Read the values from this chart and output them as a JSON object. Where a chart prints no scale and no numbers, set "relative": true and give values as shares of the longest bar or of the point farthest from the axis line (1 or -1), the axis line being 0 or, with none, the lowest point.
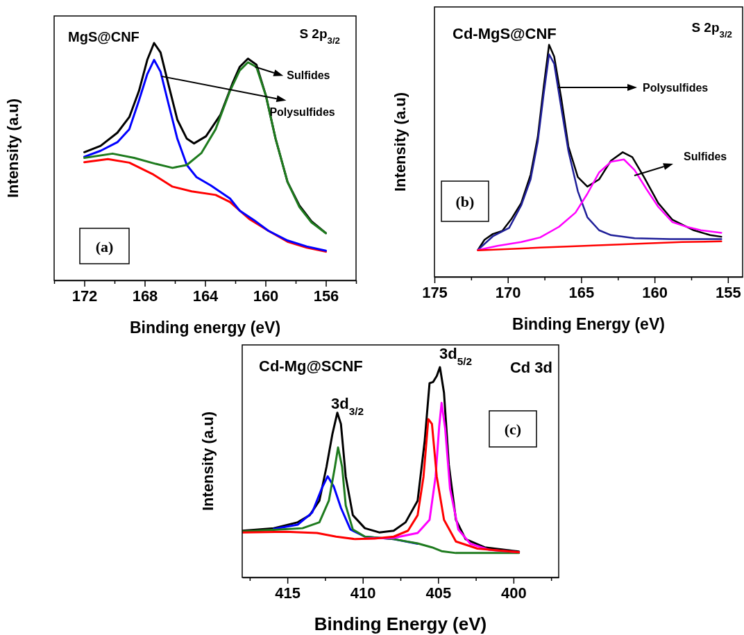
{
  "chart_data": [
    {
      "type": "line",
      "relative": true,
      "xlabel": "Binding energy (eV)",
      "ylabel": "Intensity (a.u)",
      "xlim": [
        174,
        154
      ],
      "xticks": [
        {
          "value": 174,
          "label": null
        },
        172,
        {
          "value": 170,
          "label": null
        },
        168,
        {
          "value": 166,
          "label": null
        },
        164,
        {
          "value": 162,
          "label": null
        },
        160,
        {
          "value": 158,
          "label": null
        },
        156,
        {
          "value": 154,
          "label": null
        }
      ],
      "annotations": [
        "MgS@CNF",
        "S 2p$_{3/2}$",
        {
          "text": "Sulfides",
          "x": 160.7,
          "y": 0.9
        },
        {
          "text": "Polysulfides",
          "x": 166.9,
          "y": 0.86
        },
        "(a)"
      ],
      "series": [
        {
          "color": "#000000",
          "x": [
            172,
            170.92,
            169.81,
            169.02,
            168.38,
            167.83,
            167.38,
            166.95,
            166.48,
            165.84,
            165.21,
            164.73,
            163.94,
            162.98,
            162.19,
            161.71,
            161.16,
            160.6,
            159.97,
            159.33,
            158.54,
            157.75,
            156.95,
            156
          ],
          "values": [
            0.54,
            0.567,
            0.622,
            0.688,
            0.798,
            0.929,
            1,
            0.96,
            0.839,
            0.677,
            0.597,
            0.577,
            0.607,
            0.698,
            0.829,
            0.899,
            0.934,
            0.909,
            0.778,
            0.597,
            0.415,
            0.315,
            0.249,
            0.199
          ]
        },
        {
          "color": "#ff0000",
          "x": [
            172,
            170.44,
            169.02,
            167.43,
            166.16,
            164.89,
            163.3,
            162.35,
            161.08,
            159.81,
            158.54,
            157.27,
            156
          ],
          "values": [
            0.498,
            0.511,
            0.496,
            0.446,
            0.395,
            0.375,
            0.36,
            0.33,
            0.259,
            0.209,
            0.163,
            0.138,
            0.121
          ]
        },
        {
          "color": "#0000ff",
          "x": [
            172,
            170.92,
            169.81,
            169.02,
            168.38,
            167.83,
            167.38,
            166.95,
            166.48,
            165.84,
            165.21,
            164.57,
            163.62,
            162.35,
            161.71,
            160.76,
            159.81,
            158.54,
            157.27,
            156
          ],
          "values": [
            0.521,
            0.546,
            0.582,
            0.637,
            0.758,
            0.869,
            0.929,
            0.879,
            0.758,
            0.597,
            0.486,
            0.435,
            0.4,
            0.345,
            0.294,
            0.254,
            0.209,
            0.168,
            0.143,
            0.125
          ]
        },
        {
          "color": "#1e7b1e",
          "x": [
            172,
            170.13,
            168.7,
            167.27,
            166.16,
            165.21,
            164.25,
            163.3,
            162.35,
            161.71,
            161.16,
            160.6,
            159.97,
            159.33,
            158.54,
            157.75,
            156.95,
            156
          ],
          "values": [
            0.516,
            0.534,
            0.516,
            0.491,
            0.474,
            0.486,
            0.536,
            0.637,
            0.798,
            0.884,
            0.919,
            0.899,
            0.778,
            0.597,
            0.415,
            0.309,
            0.244,
            0.199
          ]
        }
      ]
    },
    {
      "type": "line",
      "relative": true,
      "xlabel": "Binding Energy (eV)",
      "ylabel": "Intensity (a.u)",
      "xlim": [
        175,
        154
      ],
      "xticks": [
        175,
        {
          "value": 172.5,
          "label": null
        },
        170,
        {
          "value": 167.5,
          "label": null
        },
        165,
        {
          "value": 162.5,
          "label": null
        },
        160,
        {
          "value": 157.5,
          "label": null
        },
        155
      ],
      "annotations": [
        "Cd-MgS@CNF",
        "S 2p$_{3/2}$",
        "Polysulfides",
        "Sulfides",
        "(b)"
      ],
      "series": [
        {
          "color": "#000000",
          "x": [
            172.04,
            171.59,
            171.02,
            170.38,
            169.73,
            169.09,
            168.45,
            167.96,
            167.56,
            167.19,
            166.84,
            166.35,
            165.87,
            165.23,
            164.58,
            163.78,
            162.97,
            162.17,
            161.52,
            160.72,
            159.75,
            158.78,
            158.14,
            157.33,
            156.21,
            155.45
          ],
          "values": [
            0.116,
            0.16,
            0.185,
            0.198,
            0.252,
            0.318,
            0.44,
            0.603,
            0.817,
            1,
            0.949,
            0.766,
            0.562,
            0.43,
            0.389,
            0.42,
            0.501,
            0.537,
            0.516,
            0.43,
            0.318,
            0.246,
            0.226,
            0.201,
            0.18,
            0.173
          ]
        },
        {
          "color": "#1f1f99",
          "x": [
            172.04,
            171.02,
            169.91,
            169.09,
            168.45,
            167.96,
            167.56,
            167.19,
            166.84,
            166.35,
            165.87,
            165.23,
            164.58,
            163.78,
            162.97,
            161.36,
            158.95,
            155.45
          ],
          "values": [
            0.116,
            0.175,
            0.211,
            0.308,
            0.42,
            0.582,
            0.786,
            0.959,
            0.918,
            0.725,
            0.542,
            0.369,
            0.257,
            0.201,
            0.18,
            0.167,
            0.163,
            0.163
          ]
        },
        {
          "color": "#ff00ff",
          "x": [
            172.04,
            170.7,
            169.09,
            167.8,
            166.51,
            165.39,
            164.58,
            163.78,
            162.97,
            162.09,
            161.36,
            160.56,
            159.75,
            158.78,
            157.82,
            156.85,
            155.45
          ],
          "values": [
            0.116,
            0.134,
            0.15,
            0.17,
            0.216,
            0.277,
            0.358,
            0.45,
            0.496,
            0.506,
            0.46,
            0.379,
            0.302,
            0.236,
            0.216,
            0.201,
            0.19
          ]
        },
        {
          "color": "#ff0000",
          "x": [
            172.04,
            167.8,
            158.14,
            155.45
          ],
          "values": [
            0.114,
            0.126,
            0.15,
            0.153
          ]
        }
      ]
    },
    {
      "type": "line",
      "relative": true,
      "xlabel": "Binding Energy (eV)",
      "ylabel": "Intensity (a.u)",
      "xlim": [
        418,
        397
      ],
      "xticks": [
        {
          "value": 417.5,
          "label": null
        },
        415,
        {
          "value": 412.5,
          "label": null
        },
        410,
        {
          "value": 407.5,
          "label": null
        },
        405,
        {
          "value": 402.5,
          "label": null
        },
        400,
        {
          "value": 397.5,
          "label": null
        }
      ],
      "annotations": [
        "Cd-Mg@SCNF",
        "3d$_{3/2}$",
        "3d$_{5/2}$",
        "Cd 3d",
        "(c)"
      ],
      "series": [
        {
          "color": "#000000",
          "x": [
            417.97,
            415.91,
            414.32,
            413.52,
            412.88,
            412.41,
            412.01,
            411.69,
            411.45,
            411.13,
            410.66,
            409.86,
            408.91,
            407.95,
            407.16,
            406.36,
            405.89,
            405.57,
            405.33,
            405.09,
            404.88,
            404.61,
            404.29,
            403.82,
            403.18,
            401.91,
            399.64
          ],
          "values": [
            0.222,
            0.234,
            0.262,
            0.296,
            0.365,
            0.525,
            0.684,
            0.783,
            0.73,
            0.479,
            0.296,
            0.234,
            0.214,
            0.222,
            0.262,
            0.365,
            0.65,
            0.924,
            0.93,
            0.958,
            1,
            0.878,
            0.536,
            0.274,
            0.182,
            0.143,
            0.123
          ]
        },
        {
          "color": "#0000ff",
          "x": [
            415.91,
            414.32,
            413.36,
            412.73,
            412.33,
            411.93,
            411.45,
            410.82,
            409.86,
            407.95,
            406.36
          ],
          "values": [
            0.23,
            0.251,
            0.308,
            0.422,
            0.481,
            0.433,
            0.331,
            0.228,
            0.194,
            0.182,
            0.16
          ]
        },
        {
          "color": "#1e7b1e",
          "x": [
            417.97,
            415.91,
            414.0,
            412.88,
            412.25,
            411.85,
            411.64,
            411.37,
            411.13,
            410.66,
            409.86,
            407.95,
            406.36,
            405.41,
            404.77,
            403.82,
            399.64
          ],
          "values": [
            0.219,
            0.226,
            0.234,
            0.262,
            0.365,
            0.525,
            0.618,
            0.525,
            0.342,
            0.228,
            0.194,
            0.182,
            0.162,
            0.143,
            0.125,
            0.116,
            0.116
          ]
        },
        {
          "color": "#ff00ff",
          "x": [
            409.86,
            407.95,
            406.36,
            405.57,
            405.17,
            404.93,
            404.77,
            404.53,
            404.21,
            403.66,
            402.86,
            401.59,
            399.64
          ],
          "values": [
            0.185,
            0.188,
            0.211,
            0.274,
            0.479,
            0.718,
            0.83,
            0.707,
            0.422,
            0.228,
            0.16,
            0.131,
            0.12
          ]
        },
        {
          "color": "#ff0000",
          "x": [
            417.97,
            415.11,
            413.04,
            411.77,
            410.5,
            409.23,
            407.95,
            407.0,
            406.36,
            405.97,
            405.65,
            405.41,
            405.09,
            404.61,
            403.82,
            402.39,
            399.64
          ],
          "values": [
            0.214,
            0.217,
            0.211,
            0.194,
            0.182,
            0.185,
            0.194,
            0.222,
            0.296,
            0.479,
            0.753,
            0.73,
            0.479,
            0.274,
            0.171,
            0.137,
            0.12
          ]
        }
      ]
    }
  ]
}
